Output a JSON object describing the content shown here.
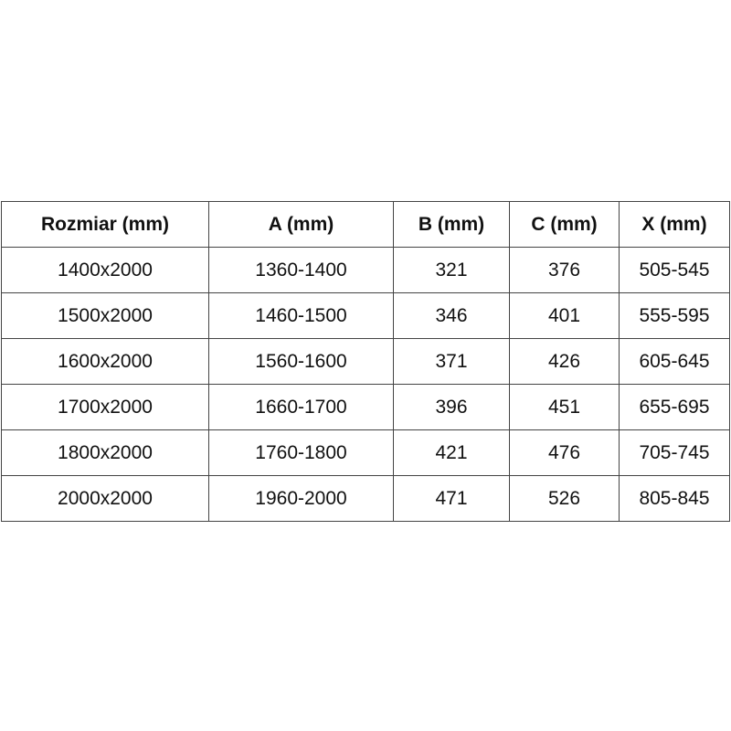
{
  "table": {
    "headers": [
      "Rozmiar (mm)",
      "A (mm)",
      "B (mm)",
      "C (mm)",
      "X (mm)"
    ],
    "rows": [
      [
        "1400x2000",
        "1360-1400",
        "321",
        "376",
        "505-545"
      ],
      [
        "1500x2000",
        "1460-1500",
        "346",
        "401",
        "555-595"
      ],
      [
        "1600x2000",
        "1560-1600",
        "371",
        "426",
        "605-645"
      ],
      [
        "1700x2000",
        "1660-1700",
        "396",
        "451",
        "655-695"
      ],
      [
        "1800x2000",
        "1760-1800",
        "421",
        "476",
        "705-745"
      ],
      [
        "2000x2000",
        "1960-2000",
        "471",
        "526",
        "805-845"
      ]
    ]
  }
}
